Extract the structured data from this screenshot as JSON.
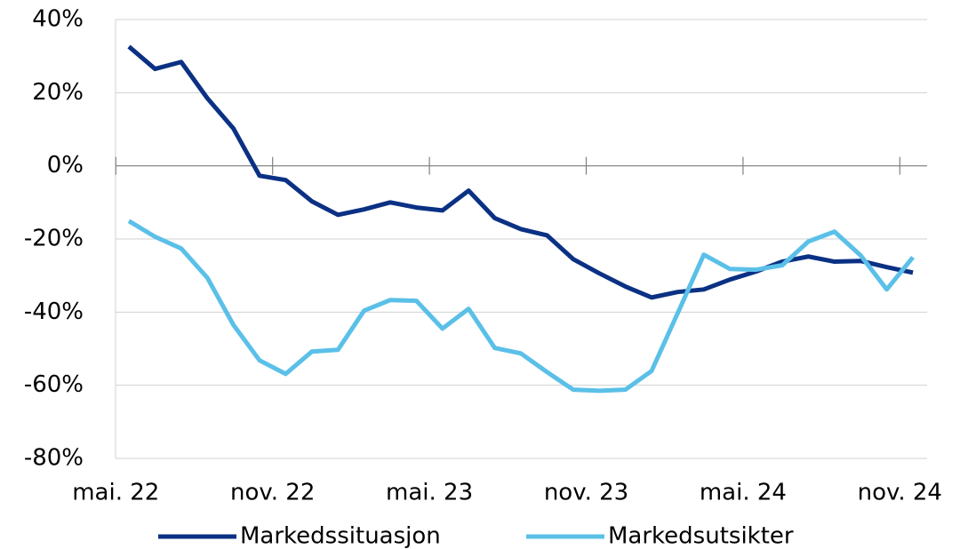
{
  "chart_data": {
    "type": "line",
    "categories": [
      "mai. 22",
      null,
      null,
      null,
      null,
      null,
      "nov. 22",
      null,
      null,
      null,
      null,
      null,
      "mai. 23",
      null,
      null,
      null,
      null,
      null,
      "nov. 23",
      null,
      null,
      null,
      null,
      null,
      "mai. 24",
      null,
      null,
      null,
      null,
      null,
      "nov. 24"
    ],
    "series": [
      {
        "name": "Markedssituasjon",
        "color": "#0b3184",
        "values": [
          32.6,
          26.5,
          28.4,
          18.5,
          10.2,
          -2.7,
          -3.9,
          -9.7,
          -13.4,
          -11.9,
          -10.0,
          -11.4,
          -12.2,
          -6.8,
          -14.3,
          -17.3,
          -19.0,
          -25.5,
          -29.4,
          -33.0,
          -36.0,
          -34.5,
          -33.8,
          -31.1,
          -28.9,
          -26.2,
          -24.8,
          -26.2,
          -26.0,
          -27.7,
          -29.2
        ]
      },
      {
        "name": "Markedsutsikter",
        "color": "#5bc0e8",
        "values": [
          -15.1,
          -19.4,
          -22.6,
          -30.6,
          -43.5,
          -53.2,
          -56.9,
          -50.8,
          -50.3,
          -39.6,
          -36.7,
          -36.9,
          -44.5,
          -39.1,
          -49.8,
          -51.3,
          -56.4,
          -61.2,
          -61.5,
          -61.2,
          -56.1,
          -40.3,
          -24.3,
          -28.2,
          -28.4,
          -27.2,
          -20.7,
          -18.0,
          -24.5,
          -33.8,
          -25.0
        ]
      }
    ],
    "ylim": [
      -80,
      40
    ],
    "yticks": [
      {
        "value": -80,
        "label": "-80%"
      },
      {
        "value": -60,
        "label": "-60%"
      },
      {
        "value": -40,
        "label": "-40%"
      },
      {
        "value": -20,
        "label": "-20%"
      },
      {
        "value": 0,
        "label": "0%"
      },
      {
        "value": 20,
        "label": "20%"
      },
      {
        "value": 40,
        "label": "40%"
      }
    ],
    "grid": true,
    "legend": "bottom"
  }
}
